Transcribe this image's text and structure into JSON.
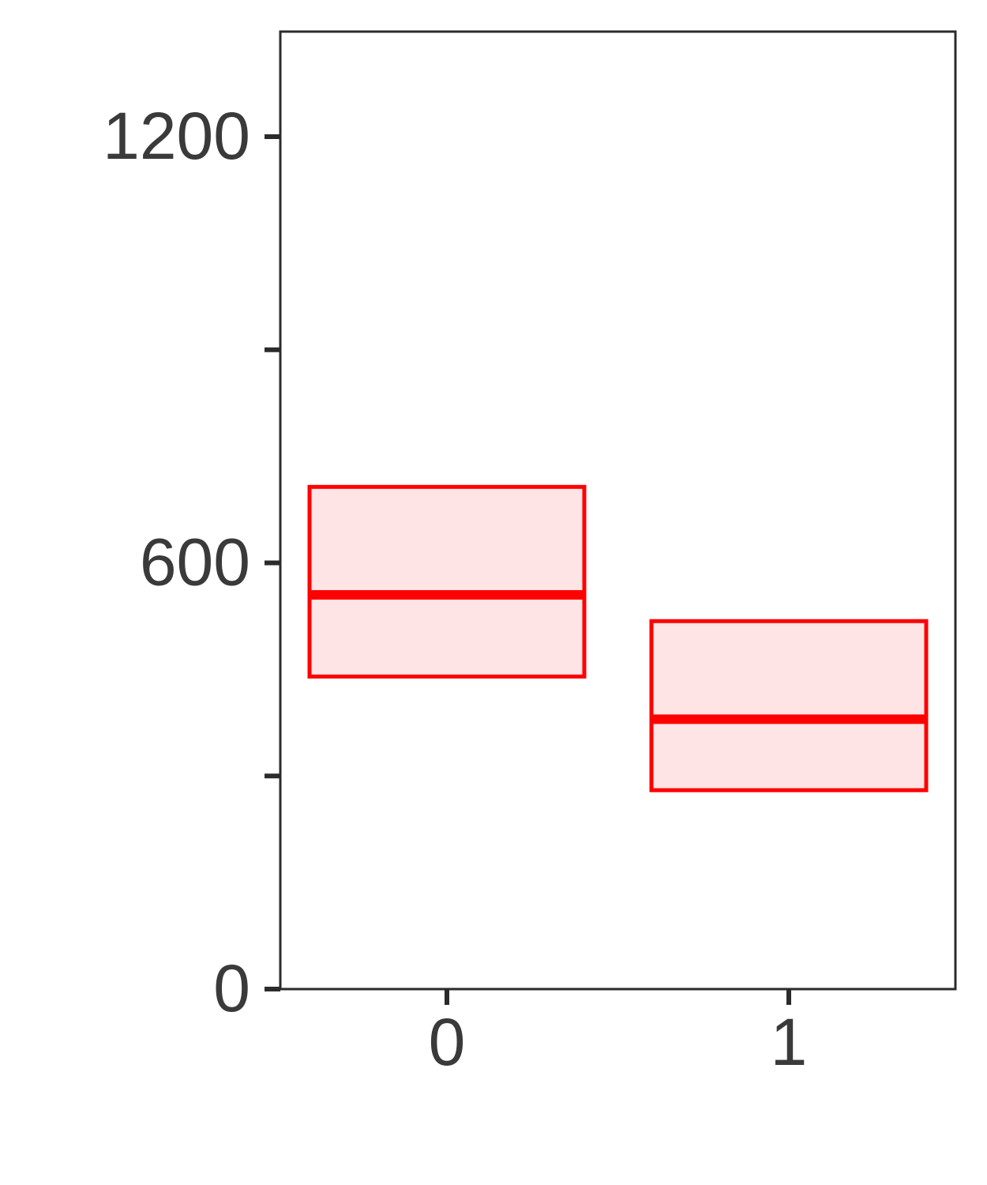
{
  "chart_data": {
    "type": "box",
    "categories": [
      "0",
      "1"
    ],
    "boxes": [
      {
        "category": "0",
        "q1": 440,
        "median": 555,
        "q3": 707
      },
      {
        "category": "1",
        "q1": 280,
        "median": 380,
        "q3": 518
      }
    ],
    "ylim": [
      0,
      1350
    ],
    "y_ticks": [
      0,
      300,
      600,
      900,
      1200
    ],
    "y_tick_labels": [
      "0",
      "",
      "600",
      "",
      "1200"
    ],
    "x_tick_labels": [
      "0",
      "1"
    ],
    "title": "",
    "xlabel": "",
    "ylabel": "",
    "grid": false,
    "colors": {
      "stroke": "#ff0000",
      "fill": "#ffe4e6",
      "axis": "#2b2b2b",
      "text": "#3a3a3a"
    }
  }
}
